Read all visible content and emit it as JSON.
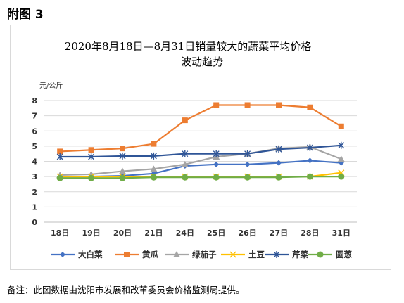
{
  "figure_label": "附图 3",
  "note": "备注：此图数据由沈阳市发展和改革委员会价格监测局提供。",
  "chart_data": {
    "type": "line",
    "title_line1": "2020年8月18日—8月31日销量较大的蔬菜平均价格",
    "title_line2": "波动趋势",
    "ylabel": "元/公斤",
    "ylim": [
      0,
      8
    ],
    "yticks": [
      "0",
      "1",
      "2",
      "3",
      "4",
      "5",
      "6",
      "7",
      "8"
    ],
    "grid": true,
    "legend_position": "bottom",
    "categories": [
      "18日",
      "19日",
      "20日",
      "21日",
      "24日",
      "25日",
      "26日",
      "27日",
      "28日",
      "31日"
    ],
    "series": [
      {
        "name": "大白菜",
        "color": "#4472c4",
        "marker": "diamond",
        "values": [
          3.0,
          3.0,
          3.05,
          3.2,
          3.7,
          3.8,
          3.8,
          3.9,
          4.05,
          3.9
        ]
      },
      {
        "name": "黄瓜",
        "color": "#ed7d31",
        "marker": "square",
        "values": [
          4.65,
          4.75,
          4.85,
          5.15,
          6.7,
          7.7,
          7.7,
          7.7,
          7.55,
          6.3
        ]
      },
      {
        "name": "绿茄子",
        "color": "#a5a5a5",
        "marker": "triangle",
        "values": [
          3.1,
          3.15,
          3.35,
          3.5,
          3.8,
          4.3,
          4.5,
          4.85,
          4.95,
          4.15
        ]
      },
      {
        "name": "土豆",
        "color": "#ffc000",
        "marker": "x",
        "values": [
          3.0,
          3.0,
          3.0,
          3.0,
          3.0,
          3.0,
          3.0,
          3.0,
          3.0,
          3.25
        ]
      },
      {
        "name": "芹菜",
        "color": "#2f5597",
        "marker": "star",
        "values": [
          4.3,
          4.3,
          4.35,
          4.35,
          4.5,
          4.5,
          4.5,
          4.8,
          4.9,
          5.05
        ]
      },
      {
        "name": "圆葱",
        "color": "#70ad47",
        "marker": "circle",
        "values": [
          2.9,
          2.9,
          2.9,
          2.95,
          2.95,
          2.95,
          2.95,
          2.95,
          3.0,
          3.0
        ]
      }
    ]
  }
}
